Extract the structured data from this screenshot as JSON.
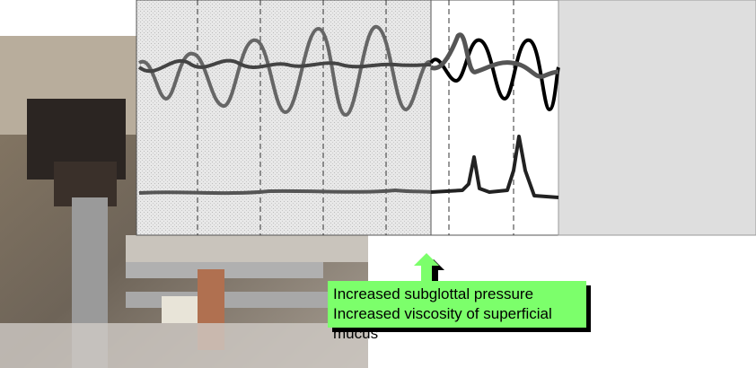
{
  "annotation": {
    "lines": [
      "Increased subglottal pressure",
      "Increased viscosity of superficial mucus"
    ]
  }
}
